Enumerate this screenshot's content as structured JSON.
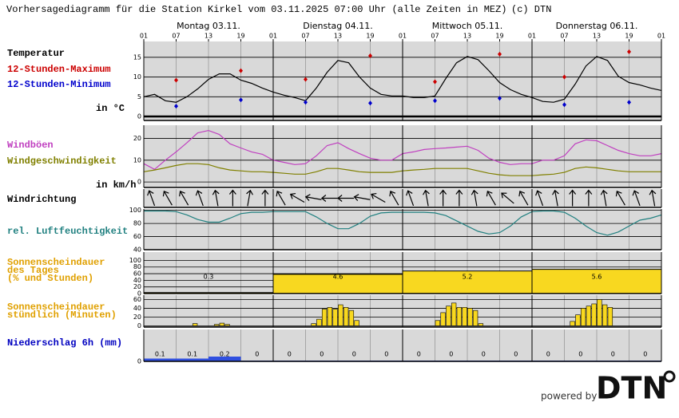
{
  "header": {
    "title": "Vorhersagediagramm für die Station Kirkel vom 03.11.2025 07:00 Uhr (alle Zeiten in MEZ)",
    "copyright": "(c) DTN"
  },
  "days": [
    "Montag 03.11.",
    "Dienstag 04.11.",
    "Mittwoch 05.11.",
    "Donnerstag 06.11."
  ],
  "hour_labels": [
    "01",
    "07",
    "13",
    "19",
    "01",
    "07",
    "13",
    "19",
    "01",
    "07",
    "13",
    "19",
    "01",
    "07",
    "13",
    "19",
    "01"
  ],
  "footer": {
    "powered": "powered by",
    "logo": "DTN"
  },
  "chart_data": [
    {
      "type": "line",
      "unit_label": "in °C",
      "ylim": [
        -1,
        19
      ],
      "yticks": [
        0,
        5,
        10,
        15
      ],
      "grid": true,
      "series": [
        {
          "name": "Temperatur",
          "color": "#000000",
          "style": "line",
          "values": [
            5,
            5.6,
            4,
            3.6,
            5,
            7,
            9.4,
            10.8,
            10.8,
            9.2,
            8.4,
            7.2,
            6.2,
            5.4,
            4.8,
            4,
            7.2,
            11.2,
            14.2,
            13.6,
            10,
            7.2,
            5.6,
            5.2,
            5.2,
            4.8,
            4.8,
            5.2,
            9.6,
            13.6,
            15.2,
            14.4,
            11.6,
            8.6,
            6.8,
            5.6,
            4.8,
            3.8,
            3.6,
            4.4,
            8.2,
            12.8,
            15.2,
            14.2,
            10.2,
            8.6,
            8,
            7.2,
            6.6
          ]
        },
        {
          "name": "12-Stunden-Maximum",
          "color": "#cc0000",
          "style": "marker",
          "values": [
            9.2,
            11.6,
            9.4,
            15.4,
            8.8,
            15.8,
            10,
            16.4
          ]
        },
        {
          "name": "12-Stunden-Minimum",
          "color": "#0000cc",
          "style": "marker",
          "values": [
            2.6,
            4.2,
            3.6,
            3.4,
            4,
            4.6,
            3,
            3.6
          ]
        }
      ]
    },
    {
      "type": "line",
      "unit_label": "in km/h",
      "ylim": [
        -2.5,
        26
      ],
      "yticks": [
        0,
        10,
        20
      ],
      "grid": true,
      "series": [
        {
          "name": "Windböen",
          "color": "#c040c0",
          "style": "line",
          "values": [
            8.4,
            5.8,
            10,
            13.8,
            18,
            22.5,
            23.6,
            21.8,
            17.5,
            15.6,
            13.8,
            12.7,
            10,
            9,
            8,
            8.4,
            12,
            16.7,
            18,
            15.3,
            13,
            10.9,
            10,
            10,
            13,
            13.8,
            14.9,
            15.3,
            15.6,
            16,
            16.4,
            14.5,
            10.9,
            9,
            8,
            8.4,
            8.4,
            10,
            10,
            12,
            17.5,
            19.3,
            18.9,
            16.7,
            14.5,
            13,
            12,
            12,
            13
          ]
        },
        {
          "name": "Windgeschwindigkeit",
          "color": "#808000",
          "style": "line",
          "values": [
            4.7,
            5.5,
            6.5,
            7.6,
            8.4,
            8.4,
            8,
            6.5,
            5.5,
            5.1,
            4.7,
            4.7,
            4.4,
            4,
            3.6,
            3.6,
            4.7,
            6.2,
            6.2,
            5.5,
            4.7,
            4.4,
            4.4,
            4.4,
            5.1,
            5.5,
            5.8,
            6.2,
            6.2,
            6.2,
            6.2,
            5.1,
            4,
            3.3,
            2.9,
            2.9,
            2.9,
            3.3,
            3.6,
            4.4,
            6.2,
            6.9,
            6.5,
            5.8,
            5.1,
            4.7,
            4.7,
            4.7,
            4.7
          ]
        }
      ]
    },
    {
      "type": "wind-direction",
      "name": "Windrichtung",
      "values": [
        160,
        150,
        150,
        160,
        170,
        180,
        190,
        180,
        150,
        120,
        100,
        90,
        90,
        100,
        120,
        150,
        160,
        170,
        180,
        180,
        170,
        150,
        130,
        150,
        160,
        170,
        180,
        180,
        170,
        150,
        160,
        170
      ]
    },
    {
      "type": "line",
      "ylim": [
        40,
        102
      ],
      "yticks": [
        40,
        60,
        80,
        100
      ],
      "grid": true,
      "series": [
        {
          "name": "rel. Luftfeuchtigkeit",
          "color": "#208080",
          "style": "line",
          "values": [
            99,
            99,
            99,
            98,
            93,
            86,
            82,
            82,
            88,
            95,
            97,
            97,
            98,
            98,
            98,
            98,
            90,
            80,
            72,
            72,
            80,
            91,
            96,
            97,
            97,
            97,
            97,
            96,
            92,
            84,
            76,
            68,
            64,
            66,
            76,
            90,
            98,
            99,
            99,
            97,
            88,
            76,
            66,
            62,
            67,
            76,
            85,
            88,
            93
          ]
        }
      ]
    },
    {
      "type": "daily-bar",
      "title_lines": [
        "Sonnenscheindauer",
        "des Tages",
        "(% und Stunden)"
      ],
      "color": "#f8d820",
      "ylim": [
        0,
        125
      ],
      "yticks": [
        0,
        20,
        40,
        60,
        80,
        100
      ],
      "grid": true,
      "values": [
        3,
        58,
        68,
        73
      ],
      "hours": [
        0.3,
        4.6,
        5.2,
        5.6
      ]
    },
    {
      "type": "hourly-bar",
      "title_lines": [
        "Sonnenscheindauer",
        "stündlich (Minuten)"
      ],
      "color": "#f8d820",
      "ylim": [
        -3,
        70
      ],
      "yticks": [
        0,
        20,
        40,
        60
      ],
      "grid": true,
      "values": [
        0,
        0,
        0,
        0,
        0,
        0,
        0,
        0,
        0,
        5,
        0,
        0,
        0,
        3,
        6,
        3,
        0,
        0,
        0,
        0,
        0,
        0,
        0,
        0,
        0,
        0,
        0,
        0,
        0,
        0,
        0,
        5,
        15,
        38,
        42,
        38,
        48,
        42,
        35,
        12,
        0,
        0,
        0,
        0,
        0,
        0,
        0,
        0,
        0,
        0,
        0,
        0,
        0,
        0,
        12,
        30,
        45,
        52,
        42,
        42,
        40,
        35,
        5,
        0,
        0,
        0,
        0,
        0,
        0,
        0,
        0,
        0,
        0,
        0,
        0,
        0,
        0,
        0,
        0,
        10,
        25,
        40,
        45,
        50,
        60,
        48,
        42,
        0,
        0,
        0,
        0,
        0,
        0,
        0,
        0,
        0
      ]
    },
    {
      "type": "precip-bar",
      "title": "Niederschlag 6h (mm)",
      "color": "#3050e0",
      "ylim": [
        0,
        1.6
      ],
      "yticks": [
        0
      ],
      "values": [
        0.1,
        0.1,
        0.2,
        0,
        0,
        0,
        0,
        0,
        0,
        0,
        0,
        0,
        0,
        0,
        0,
        0
      ]
    }
  ]
}
